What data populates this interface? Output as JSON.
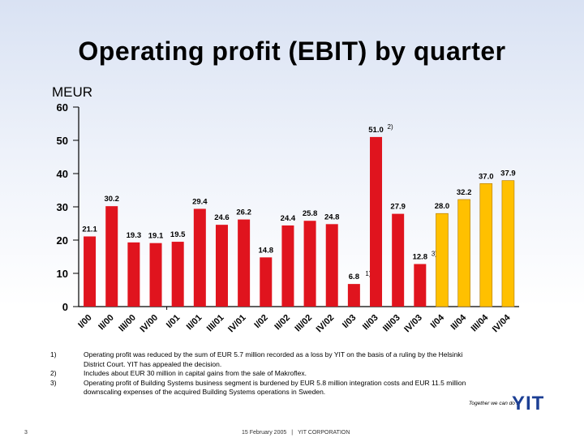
{
  "title": "Operating profit (EBIT) by quarter",
  "unit": "MEUR",
  "colors": {
    "bar_primary": "#e0141e",
    "bar_highlight": "#ffc000",
    "bar_outline_highlight": "#b07800",
    "axis": "#000000"
  },
  "chart_data": {
    "type": "bar",
    "title": "Operating profit (EBIT) by quarter",
    "ylabel": "MEUR",
    "xlabel": "",
    "ylim": [
      0,
      60
    ],
    "yticks": [
      0,
      10,
      20,
      30,
      40,
      50,
      60
    ],
    "grid": false,
    "categories": [
      "I/00",
      "II/00",
      "III/00",
      "IV/00",
      "I/01",
      "II/01",
      "III/01",
      "IV/01",
      "I/02",
      "II/02",
      "III/02",
      "IV/02",
      "I/03",
      "II/03",
      "III/03",
      "IV/03",
      "I/04",
      "II/04",
      "III/04",
      "IV/04"
    ],
    "values": [
      21.1,
      30.2,
      19.3,
      19.1,
      19.5,
      29.4,
      24.6,
      26.2,
      14.8,
      24.4,
      25.8,
      24.8,
      6.8,
      51.0,
      27.9,
      12.8,
      28.0,
      32.2,
      37.0,
      37.9
    ],
    "value_labels": [
      "21.1",
      "30.2",
      "19.3",
      "19.1",
      "19.5",
      "29.4",
      "24.6",
      "26.2",
      "14.8",
      "24.4",
      "25.8",
      "24.8",
      "6.8",
      "51.0",
      "27.9",
      "12.8",
      "28.0",
      "32.2",
      "37.0",
      "37.9"
    ],
    "highlight_from_index": 16,
    "footnote_marks": {
      "12": "1)",
      "13": "2)",
      "15": "3)"
    }
  },
  "notes": [
    {
      "num": "1)",
      "text": "Operating profit was reduced by the sum of EUR 5.7 million recorded as a loss by YIT on the basis of a ruling by the Helsinki District Court. YIT has appealed the decision."
    },
    {
      "num": "2)",
      "text": "Includes about EUR 30 million in capital gains from the sale of Makroflex."
    },
    {
      "num": "3)",
      "text": "Operating profit of Building Systems business segment is burdened by EUR 5.8 million integration costs and EUR 11.5 million downscaling expenses of the acquired Building Systems operations in Sweden."
    }
  ],
  "footer": {
    "page_number": "3",
    "date": "15 February 2005",
    "separator": "|",
    "company": "YIT CORPORATION",
    "tagline": "Together we can do it",
    "logo_text": "YIT"
  }
}
